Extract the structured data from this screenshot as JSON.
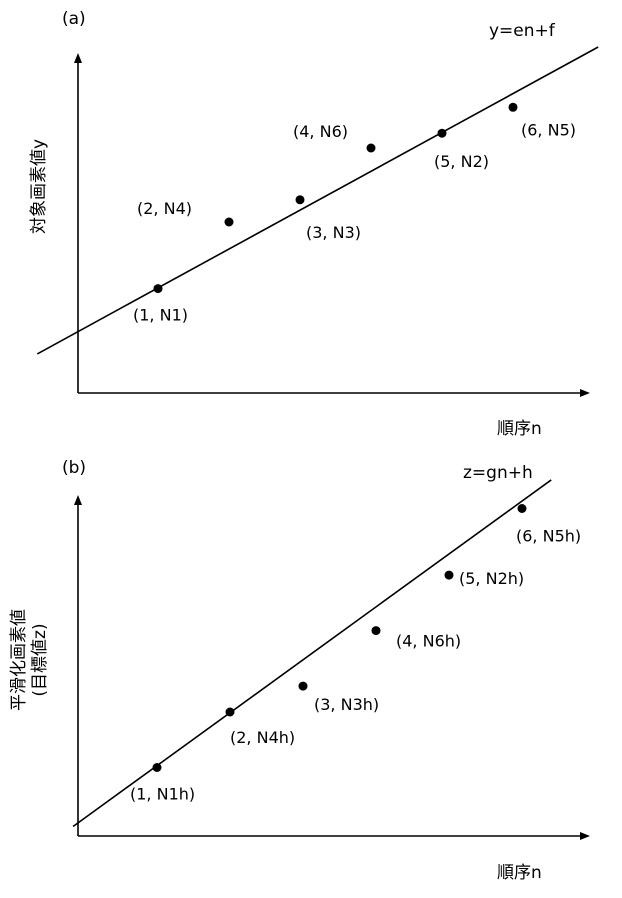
{
  "chart_data": [
    {
      "type": "scatter",
      "panel_label": "(a)",
      "ylabel": "対象画素値y",
      "xlabel": "順序n",
      "equation": "y=en+f",
      "axis_ticks": "none",
      "points": [
        {
          "n": 1,
          "y": 2.2,
          "label": "(1, N1)"
        },
        {
          "n": 2,
          "y": 4.0,
          "label": "(2, N4)"
        },
        {
          "n": 3,
          "y": 4.6,
          "label": "(3, N3)"
        },
        {
          "n": 4,
          "y": 6.0,
          "label": "(4, N6)"
        },
        {
          "n": 5,
          "y": 6.4,
          "label": "(5, N2)"
        },
        {
          "n": 6,
          "y": 7.1,
          "label": "(6, N5)"
        }
      ],
      "fit_line": {
        "slope": 1.05,
        "intercept": 1.17
      }
    },
    {
      "type": "scatter",
      "panel_label": "(b)",
      "ylabel": "平滑化画素値",
      "ylabel_line2": "(目標値z)",
      "xlabel": "順序n",
      "equation": "z=gn+h",
      "axis_ticks": "none",
      "points": [
        {
          "n": 1,
          "y": 1.5,
          "label": "(1, N1h)"
        },
        {
          "n": 2,
          "y": 3.0,
          "label": "(2, N4h)"
        },
        {
          "n": 3,
          "y": 3.7,
          "label": "(3, N3h)"
        },
        {
          "n": 4,
          "y": 5.2,
          "label": "(4, N6h)"
        },
        {
          "n": 5,
          "y": 6.7,
          "label": "(5, N2h)"
        },
        {
          "n": 6,
          "y": 8.5,
          "label": "(6, N5h)"
        }
      ],
      "fit_line": {
        "slope": 1.43,
        "intercept": 0.12
      }
    }
  ]
}
